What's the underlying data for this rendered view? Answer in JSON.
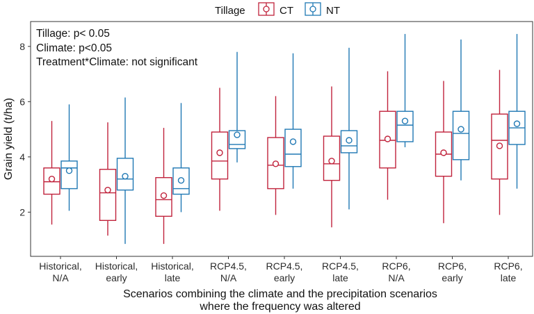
{
  "chart_data": {
    "type": "boxplot",
    "ylabel": "Grain yield (t/ha)",
    "xlabel_lines": [
      "Scenarios combining the climate and the precipitation scenarios",
      "where the frequency was altered"
    ],
    "ylim": [
      0.4,
      8.9
    ],
    "yticks": [
      2,
      4,
      6,
      8
    ],
    "legend": {
      "title": "Tillage",
      "items": [
        {
          "name": "CT",
          "color": "#c0223b"
        },
        {
          "name": "NT",
          "color": "#1f78b4"
        }
      ],
      "position": "top-center"
    },
    "annotations": [
      "Tillage: p< 0.05",
      "Climate: p<0.05",
      "Treatment*Climate: not significant"
    ],
    "categories": [
      {
        "line1": "Historical,",
        "line2": "N/A"
      },
      {
        "line1": "Historical,",
        "line2": "early"
      },
      {
        "line1": "Historical,",
        "line2": "late"
      },
      {
        "line1": "RCP4.5,",
        "line2": "N/A"
      },
      {
        "line1": "RCP4.5,",
        "line2": "early"
      },
      {
        "line1": "RCP4.5,",
        "line2": "late"
      },
      {
        "line1": "RCP6,",
        "line2": "N/A"
      },
      {
        "line1": "RCP6,",
        "line2": "early"
      },
      {
        "line1": "RCP6,",
        "line2": "late"
      }
    ],
    "series": [
      {
        "name": "CT",
        "color": "#c0223b",
        "boxes": [
          {
            "min": 1.55,
            "q1": 2.65,
            "median": 3.1,
            "q3": 3.6,
            "max": 5.3,
            "mean": 3.2
          },
          {
            "min": 1.15,
            "q1": 1.7,
            "median": 2.7,
            "q3": 3.55,
            "max": 5.25,
            "mean": 2.8
          },
          {
            "min": 0.85,
            "q1": 1.85,
            "median": 2.45,
            "q3": 3.25,
            "max": 5.05,
            "mean": 2.6
          },
          {
            "min": 2.05,
            "q1": 3.2,
            "median": 3.85,
            "q3": 4.9,
            "max": 6.5,
            "mean": 4.15
          },
          {
            "min": 1.9,
            "q1": 2.85,
            "median": 3.7,
            "q3": 4.7,
            "max": 6.2,
            "mean": 3.75
          },
          {
            "min": 1.45,
            "q1": 3.15,
            "median": 3.75,
            "q3": 4.75,
            "max": 6.55,
            "mean": 3.85
          },
          {
            "min": 2.45,
            "q1": 3.6,
            "median": 4.6,
            "q3": 5.65,
            "max": 7.1,
            "mean": 4.65
          },
          {
            "min": 1.6,
            "q1": 3.3,
            "median": 4.1,
            "q3": 4.9,
            "max": 6.75,
            "mean": 4.15
          },
          {
            "min": 1.9,
            "q1": 3.2,
            "median": 4.6,
            "q3": 5.55,
            "max": 7.15,
            "mean": 4.4
          }
        ]
      },
      {
        "name": "NT",
        "color": "#1f78b4",
        "boxes": [
          {
            "min": 2.05,
            "q1": 2.85,
            "median": 3.6,
            "q3": 3.85,
            "max": 5.9,
            "mean": 3.5
          },
          {
            "min": 0.85,
            "q1": 2.8,
            "median": 3.2,
            "q3": 3.95,
            "max": 6.15,
            "mean": 3.3
          },
          {
            "min": 2.0,
            "q1": 2.65,
            "median": 2.85,
            "q3": 3.6,
            "max": 5.95,
            "mean": 3.15
          },
          {
            "min": 3.8,
            "q1": 4.3,
            "median": 4.45,
            "q3": 4.95,
            "max": 7.8,
            "mean": 4.8
          },
          {
            "min": 2.85,
            "q1": 3.65,
            "median": 4.1,
            "q3": 5.0,
            "max": 7.75,
            "mean": 4.55
          },
          {
            "min": 2.1,
            "q1": 4.15,
            "median": 4.4,
            "q3": 4.95,
            "max": 7.95,
            "mean": 4.6
          },
          {
            "min": 4.35,
            "q1": 4.55,
            "median": 5.15,
            "q3": 5.65,
            "max": 8.45,
            "mean": 5.3
          },
          {
            "min": 3.15,
            "q1": 3.9,
            "median": 4.85,
            "q3": 5.65,
            "max": 8.25,
            "mean": 5.0
          },
          {
            "min": 2.85,
            "q1": 4.45,
            "median": 5.05,
            "q3": 5.65,
            "max": 8.45,
            "mean": 5.2
          }
        ]
      }
    ]
  }
}
